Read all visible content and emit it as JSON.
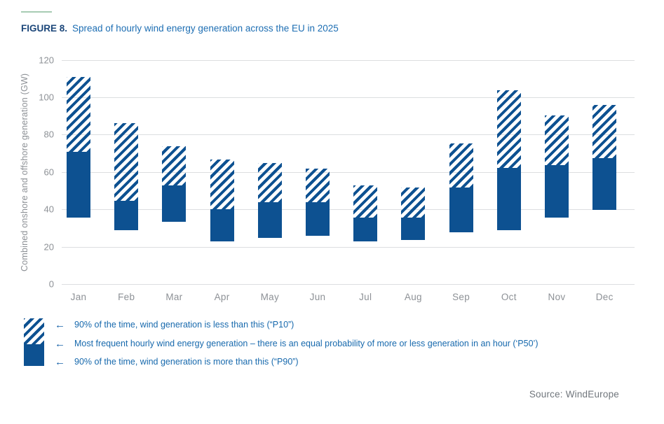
{
  "figure": {
    "label": "FIGURE 8.",
    "title": "Spread of hourly wind energy generation across the EU in 2025"
  },
  "chart_data": {
    "type": "bar",
    "subtype": "floating-range-bars",
    "title": "Spread of hourly wind energy generation across the EU in 2025",
    "xlabel": "",
    "ylabel": "Combined onshore and offshore generation (GW)",
    "ylim": [
      0,
      120
    ],
    "ytick_step": 20,
    "grid": true,
    "categories": [
      "Jan",
      "Feb",
      "Mar",
      "Apr",
      "May",
      "Jun",
      "Jul",
      "Aug",
      "Sep",
      "Oct",
      "Nov",
      "Dec"
    ],
    "series": [
      {
        "key": "p90",
        "name": "P90 (90% of the time generation is more than this — bottom of solid bar)",
        "values": [
          36,
          29,
          33.5,
          23,
          25,
          26,
          23,
          24,
          28,
          29,
          36,
          40
        ]
      },
      {
        "key": "p50",
        "name": "P50 (most frequent hourly generation — top of solid bar)",
        "values": [
          71,
          45,
          53,
          40.5,
          44,
          44,
          36,
          36,
          52,
          62.5,
          64,
          67.5
        ]
      },
      {
        "key": "p10",
        "name": "P10 (90% of the time generation is less than this — top of hatched bar)",
        "values": [
          111,
          86.5,
          74,
          67,
          65,
          62,
          53,
          52,
          75.5,
          104,
          90.5,
          96
        ]
      }
    ],
    "legend_position": "bottom-left",
    "colors": {
      "bar_blue": "#0d5191",
      "grid_gray": "#dcdee0",
      "axis_text_gray": "#8d9196"
    }
  },
  "legend": {
    "arrow": "←",
    "items": [
      {
        "swatch": "hatched",
        "label": "90% of the time, wind generation is less than this (“P10”)"
      },
      {
        "swatch": "boundary",
        "label": "Most frequent hourly wind energy generation – there is an equal probability of more or less generation in an hour (‘P50’)"
      },
      {
        "swatch": "solid",
        "label": "90% of the time, wind generation is more than this (“P90”)"
      }
    ]
  },
  "source": "Source: WindEurope",
  "accent": {
    "rule_color": "#a7ccb3"
  }
}
